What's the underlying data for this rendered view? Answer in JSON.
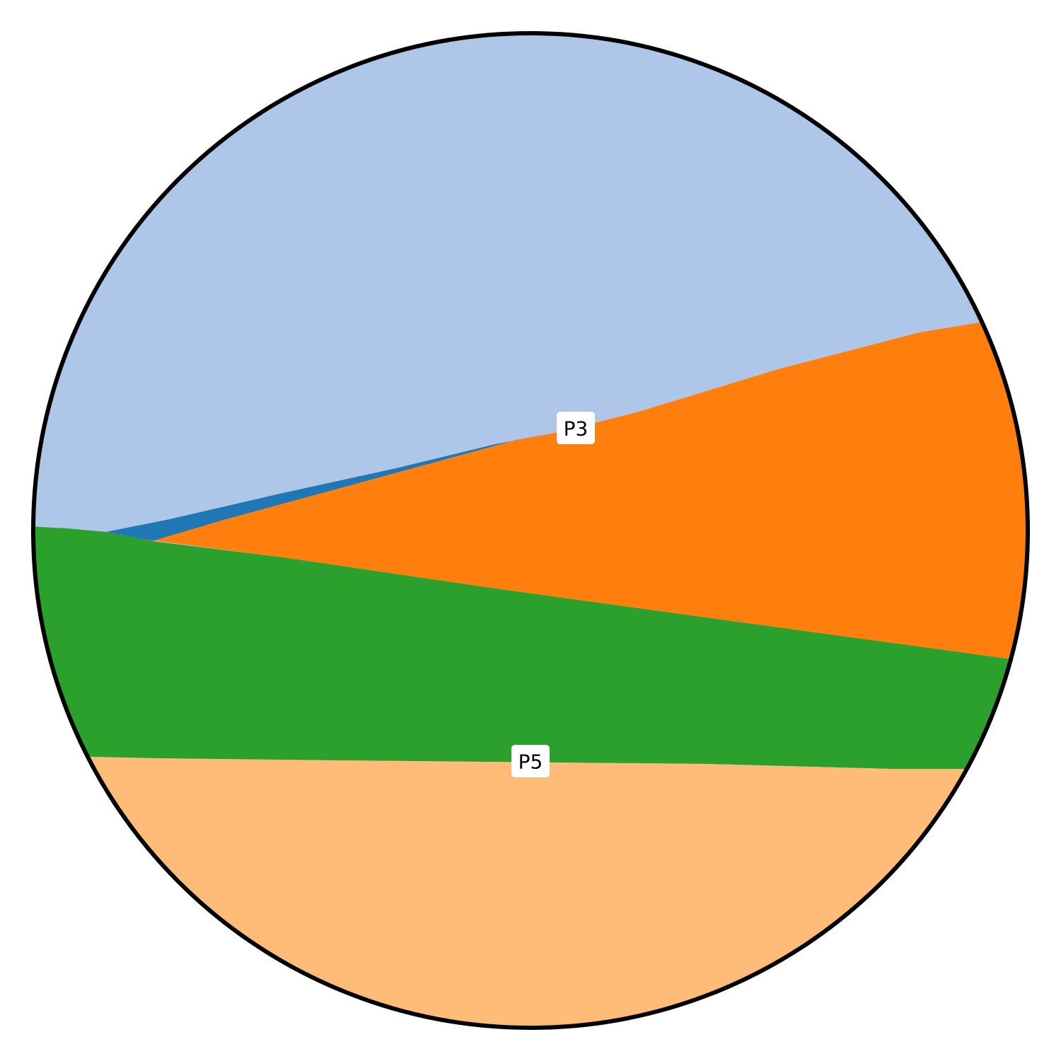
{
  "diagram": {
    "type": "stereonet-section",
    "regions": [
      {
        "name": "light-blue-region",
        "color": "#aec7e8"
      },
      {
        "name": "blue-wedge-region",
        "color": "#1f77b4"
      },
      {
        "name": "orange-region",
        "color": "#ff7f0e"
      },
      {
        "name": "green-region",
        "color": "#2ca02c"
      },
      {
        "name": "light-orange-region",
        "color": "#ffbb78"
      }
    ],
    "labels": [
      {
        "id": "p3",
        "text": "P3"
      },
      {
        "id": "p5",
        "text": "P5"
      }
    ],
    "outline_color": "#000000"
  }
}
